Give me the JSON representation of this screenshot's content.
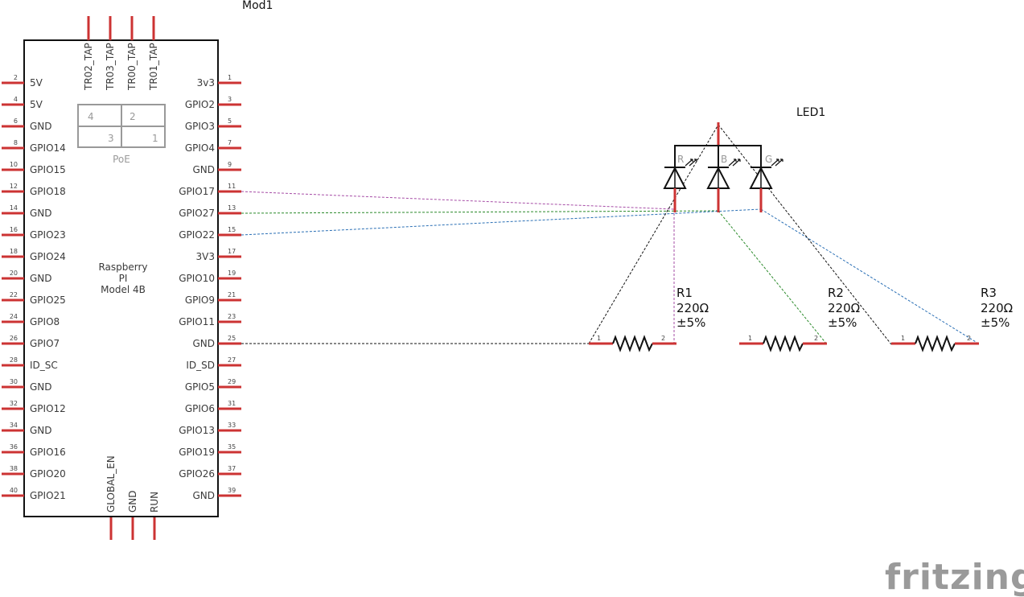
{
  "module": {
    "ref": "Mod1",
    "name_lines": [
      "Raspberry",
      "PI",
      "Model 4B"
    ],
    "left_pins": [
      {
        "num": "2",
        "label": "5V"
      },
      {
        "num": "4",
        "label": "5V"
      },
      {
        "num": "6",
        "label": "GND"
      },
      {
        "num": "8",
        "label": "GPIO14"
      },
      {
        "num": "10",
        "label": "GPIO15"
      },
      {
        "num": "12",
        "label": "GPIO18"
      },
      {
        "num": "14",
        "label": "GND"
      },
      {
        "num": "16",
        "label": "GPIO23"
      },
      {
        "num": "18",
        "label": "GPIO24"
      },
      {
        "num": "20",
        "label": "GND"
      },
      {
        "num": "22",
        "label": "GPIO25"
      },
      {
        "num": "24",
        "label": "GPIO8"
      },
      {
        "num": "26",
        "label": "GPIO7"
      },
      {
        "num": "28",
        "label": "ID_SC"
      },
      {
        "num": "30",
        "label": "GND"
      },
      {
        "num": "32",
        "label": "GPIO12"
      },
      {
        "num": "34",
        "label": "GND"
      },
      {
        "num": "36",
        "label": "GPIO16"
      },
      {
        "num": "38",
        "label": "GPIO20"
      },
      {
        "num": "40",
        "label": "GPIO21"
      }
    ],
    "right_pins": [
      {
        "num": "1",
        "label": "3v3"
      },
      {
        "num": "3",
        "label": "GPIO2"
      },
      {
        "num": "5",
        "label": "GPIO3"
      },
      {
        "num": "7",
        "label": "GPIO4"
      },
      {
        "num": "9",
        "label": "GND"
      },
      {
        "num": "11",
        "label": "GPIO17"
      },
      {
        "num": "13",
        "label": "GPIO27"
      },
      {
        "num": "15",
        "label": "GPIO22"
      },
      {
        "num": "17",
        "label": "3V3"
      },
      {
        "num": "19",
        "label": "GPIO10"
      },
      {
        "num": "21",
        "label": "GPIO9"
      },
      {
        "num": "23",
        "label": "GPIO11"
      },
      {
        "num": "25",
        "label": "GND"
      },
      {
        "num": "27",
        "label": "ID_SD"
      },
      {
        "num": "29",
        "label": "GPIO5"
      },
      {
        "num": "31",
        "label": "GPIO6"
      },
      {
        "num": "33",
        "label": "GPIO13"
      },
      {
        "num": "35",
        "label": "GPIO19"
      },
      {
        "num": "37",
        "label": "GPIO26"
      },
      {
        "num": "39",
        "label": "GND"
      }
    ],
    "top_pins": [
      "TR02_TAP",
      "TR03_TAP",
      "TR00_TAP",
      "TR01_TAP"
    ],
    "bottom_pins": [
      "GLOBAL_EN",
      "GND",
      "RUN"
    ],
    "poe": {
      "label": "PoE",
      "cells": [
        "4",
        "2",
        "3",
        "1"
      ]
    }
  },
  "led": {
    "ref": "LED1",
    "channels": [
      "R",
      "B",
      "G"
    ]
  },
  "resistors": [
    {
      "ref": "R1",
      "value": "220Ω",
      "tolerance": "±5%",
      "pin1": "1",
      "pin2": "2"
    },
    {
      "ref": "R2",
      "value": "220Ω",
      "tolerance": "±5%",
      "pin1": "1",
      "pin2": "2"
    },
    {
      "ref": "R3",
      "value": "220Ω",
      "tolerance": "±5%",
      "pin1": "1",
      "pin2": "2"
    }
  ],
  "wire_colors": {
    "purple": "#a64ca6",
    "green": "#2a8a2a",
    "blue": "#2a6fb5",
    "black": "#111111",
    "pin": "#cc3333"
  },
  "logo": "fritzing"
}
